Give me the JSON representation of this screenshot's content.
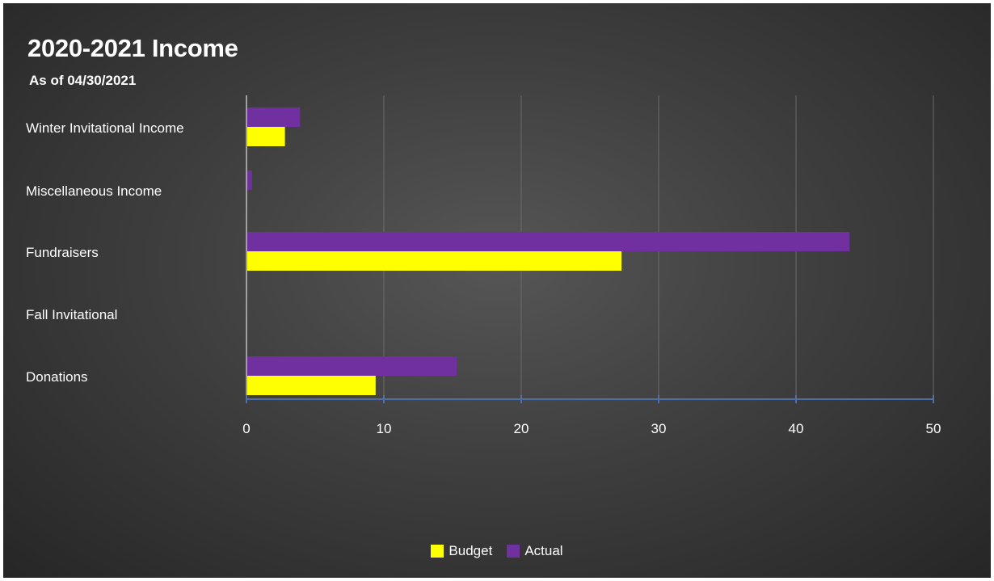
{
  "chart_data": {
    "type": "bar",
    "orientation": "horizontal",
    "title": "2020-2021 Income",
    "subtitle": "As of 04/30/2021",
    "categories": [
      "Winter Invitational Income",
      "Miscellaneous Income",
      "Fundraisers",
      "Fall Invitational",
      "Donations"
    ],
    "series": [
      {
        "name": "Actual",
        "color": "#7030a0",
        "values": [
          3.9,
          0.4,
          43.9,
          0,
          15.3
        ]
      },
      {
        "name": "Budget",
        "color": "#ffff00",
        "values": [
          2.8,
          0,
          27.3,
          0,
          9.4
        ]
      }
    ],
    "xlim": [
      0,
      50
    ],
    "xticks": [
      0,
      10,
      20,
      30,
      40,
      50
    ],
    "grid": true,
    "legend_position": "bottom",
    "legend_order": [
      "Budget",
      "Actual"
    ]
  }
}
